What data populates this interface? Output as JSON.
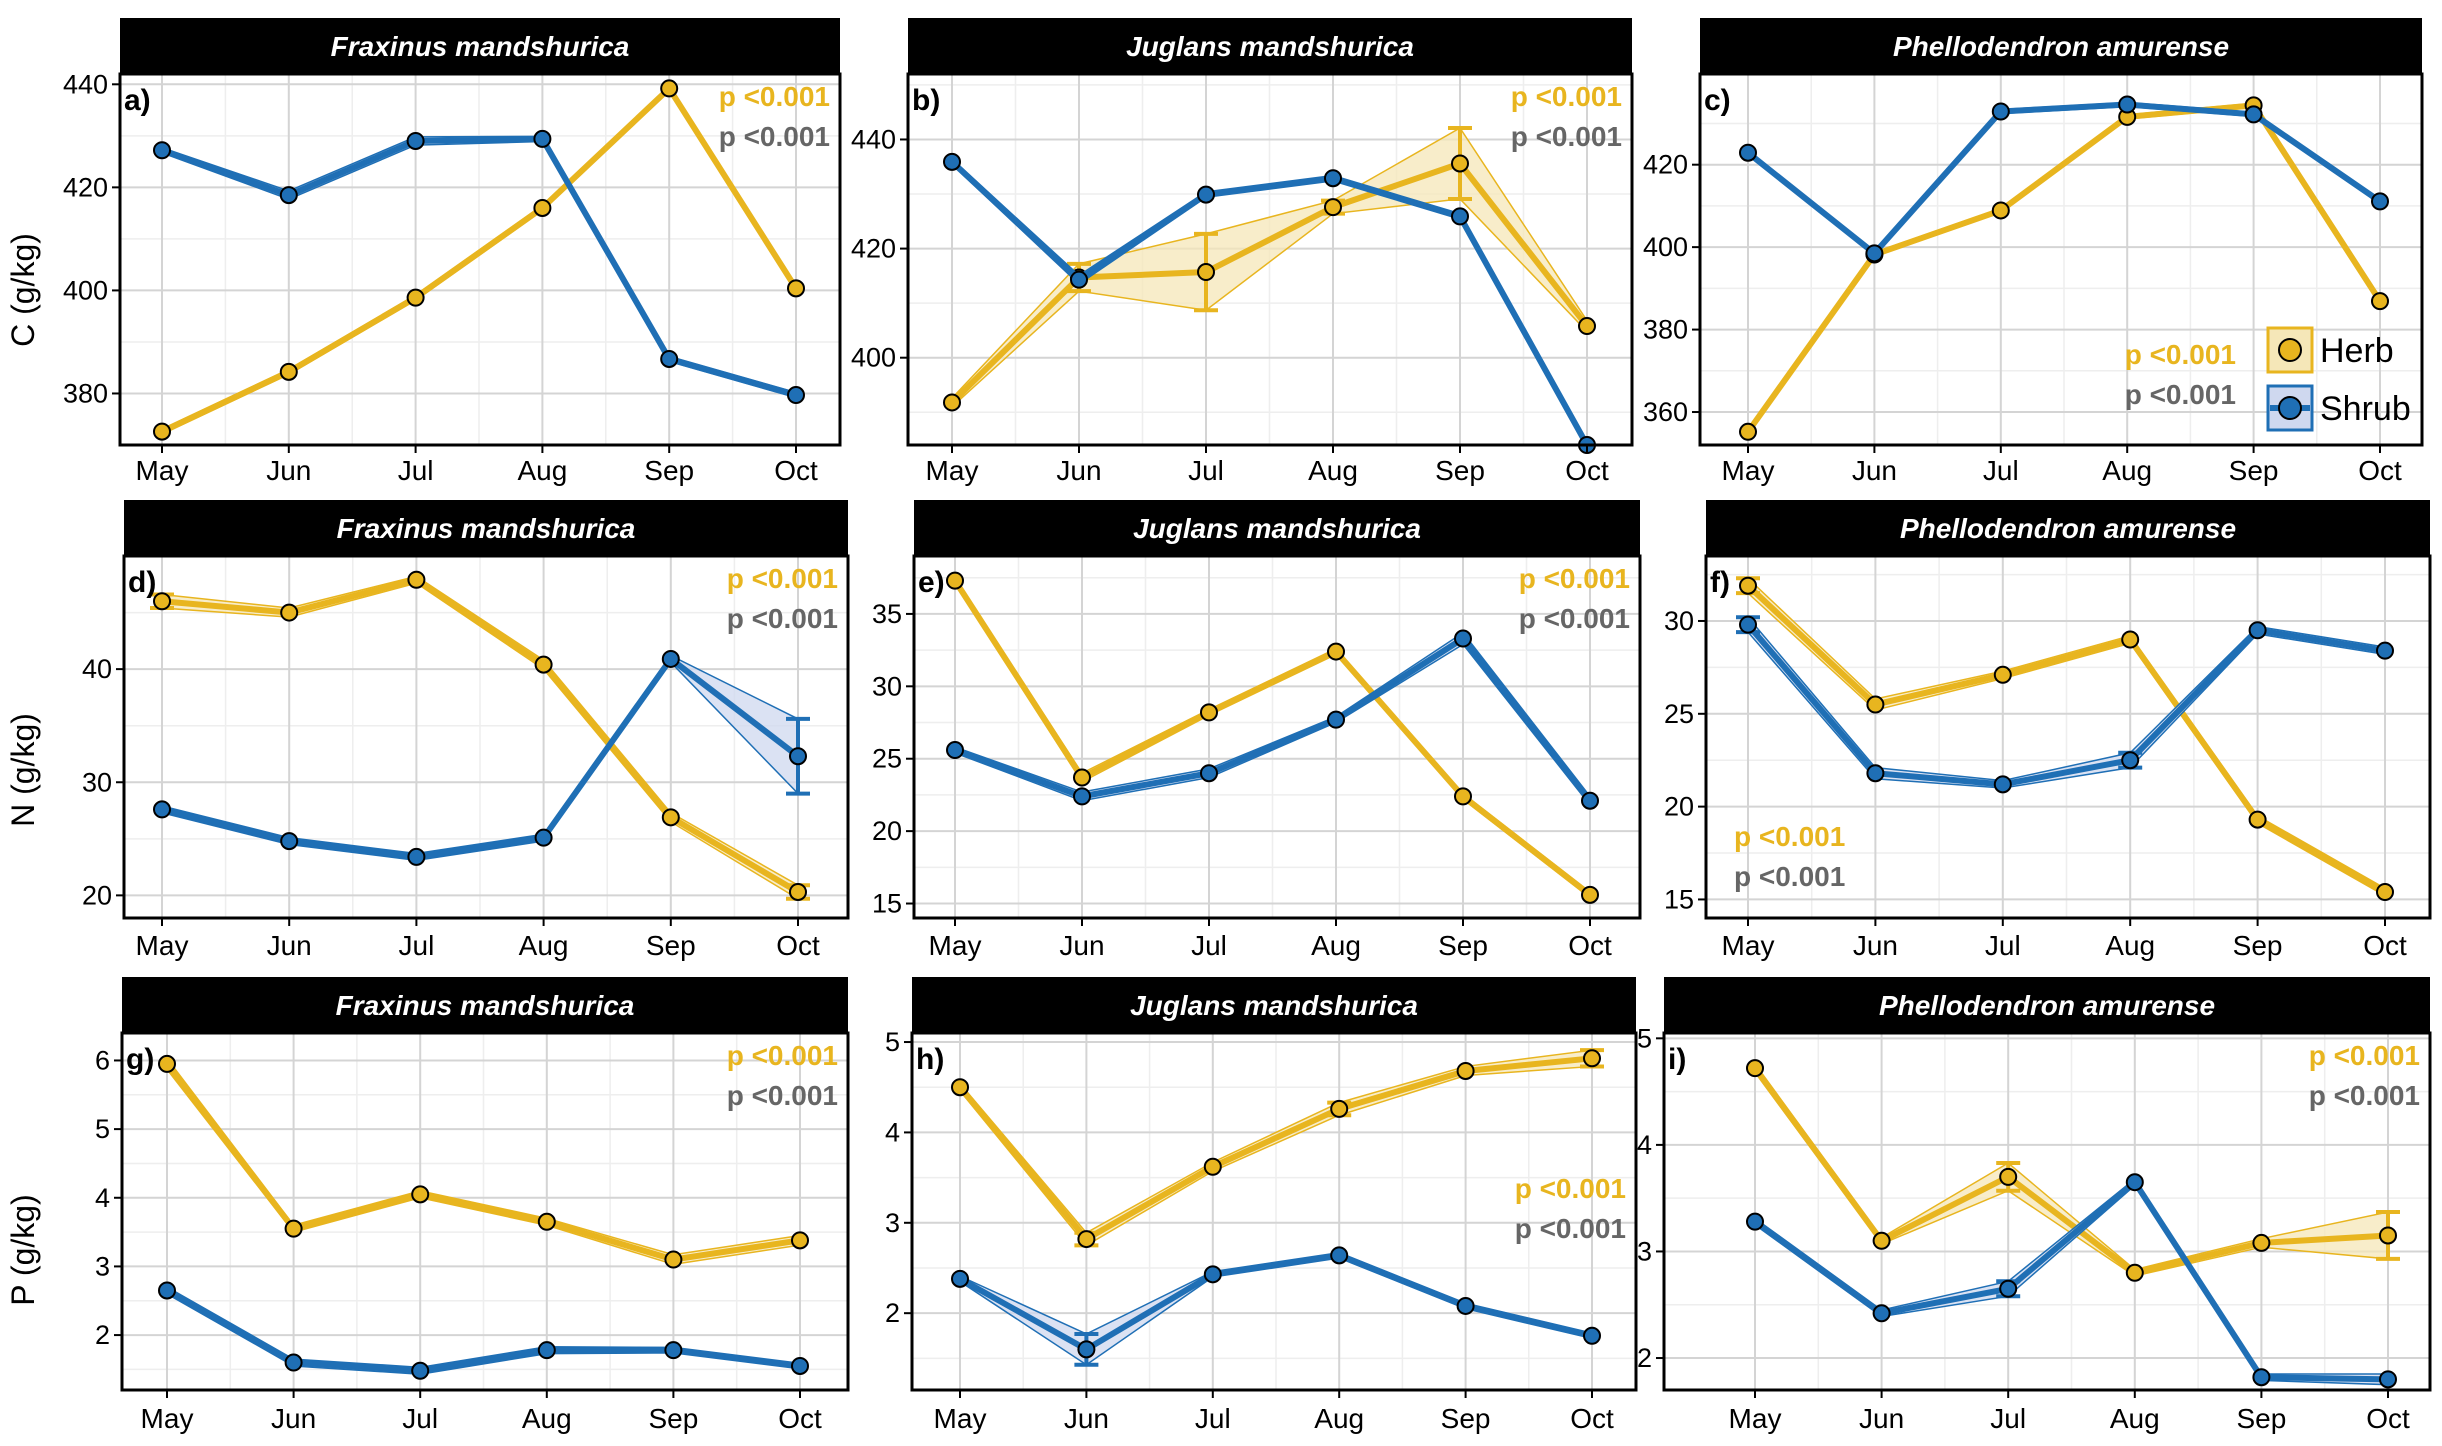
{
  "figure": {
    "months": [
      "May",
      "Jun",
      "Jul",
      "Aug",
      "Sep",
      "Oct"
    ],
    "colors": {
      "herb": "#e8b51f",
      "shrub": "#1f6fb5",
      "p_gray": "#666666",
      "strip": "#000000",
      "grid_major": "#d4d4d4",
      "grid_minor": "#eeeeee"
    },
    "legend": {
      "herb_label": "Herb",
      "shrub_label": "Shrub"
    },
    "row_labels": [
      "C (g/kg)",
      "N (g/kg)",
      "P (g/kg)"
    ]
  },
  "chart_data": [
    {
      "id": "a",
      "type": "line",
      "tag": "a)",
      "title": "Fraxinus mandshurica",
      "ylabel": "C (g/kg)",
      "xlabel": "",
      "categories": [
        "May",
        "Jun",
        "Jul",
        "Aug",
        "Sep",
        "Oct"
      ],
      "ylim": [
        370,
        442
      ],
      "yticks": [
        380,
        400,
        420,
        440
      ],
      "series": [
        {
          "name": "Herb",
          "values": [
            372.6,
            384.2,
            398.6,
            416.0,
            439.2,
            400.4
          ],
          "err": [
            0.5,
            0.5,
            0.5,
            0.5,
            0.5,
            0.5
          ]
        },
        {
          "name": "Shrub",
          "values": [
            427.2,
            418.5,
            429.0,
            429.4,
            386.7,
            379.7
          ],
          "err": [
            0.5,
            0.8,
            0.8,
            0.5,
            0.5,
            0.5
          ]
        }
      ],
      "p_text": {
        "herb": "p <0.001",
        "shrub": "p <0.001",
        "pos": "top-right"
      }
    },
    {
      "id": "b",
      "type": "line",
      "tag": "b)",
      "title": "Juglans mandshurica",
      "ylabel": "",
      "xlabel": "",
      "categories": [
        "May",
        "Jun",
        "Jul",
        "Aug",
        "Sep",
        "Oct"
      ],
      "ylim": [
        384,
        452
      ],
      "yticks": [
        400,
        420,
        440
      ],
      "series": [
        {
          "name": "Herb",
          "values": [
            391.8,
            414.7,
            415.7,
            427.6,
            435.6,
            405.8
          ],
          "err": [
            0.8,
            2.5,
            7,
            1.2,
            6.5,
            1.0
          ]
        },
        {
          "name": "Shrub",
          "values": [
            435.9,
            414.3,
            429.9,
            432.9,
            425.9,
            384.0
          ],
          "err": [
            0.5,
            0.8,
            0.5,
            0.5,
            0.5,
            0.5
          ]
        }
      ],
      "p_text": {
        "herb": "p <0.001",
        "shrub": "p <0.001",
        "pos": "top-right"
      }
    },
    {
      "id": "c",
      "type": "line",
      "tag": "c)",
      "title": "Phellodendron amurense",
      "ylabel": "",
      "xlabel": "",
      "categories": [
        "May",
        "Jun",
        "Jul",
        "Aug",
        "Sep",
        "Oct"
      ],
      "ylim": [
        352,
        442
      ],
      "yticks": [
        360,
        380,
        400,
        420
      ],
      "series": [
        {
          "name": "Herb",
          "values": [
            355.2,
            398.2,
            408.9,
            431.6,
            434.4,
            386.9
          ],
          "err": [
            0.5,
            0.5,
            0.5,
            0.5,
            0.5,
            0.5
          ]
        },
        {
          "name": "Shrub",
          "values": [
            422.9,
            398.5,
            432.9,
            434.6,
            432.2,
            411.1
          ],
          "err": [
            0.5,
            0.5,
            0.5,
            0.5,
            0.5,
            0.5
          ]
        }
      ],
      "p_text": {
        "herb": "p <0.001",
        "shrub": "p <0.001",
        "pos": "bottom-right"
      }
    },
    {
      "id": "d",
      "type": "line",
      "tag": "d)",
      "title": "Fraxinus mandshurica",
      "ylabel": "N (g/kg)",
      "xlabel": "",
      "categories": [
        "May",
        "Jun",
        "Jul",
        "Aug",
        "Sep",
        "Oct"
      ],
      "ylim": [
        18,
        50
      ],
      "yticks": [
        20,
        30,
        40
      ],
      "series": [
        {
          "name": "Herb",
          "values": [
            46.0,
            45.0,
            47.9,
            40.4,
            26.9,
            20.3
          ],
          "err": [
            0.6,
            0.4,
            0.3,
            0.4,
            0.4,
            0.6
          ]
        },
        {
          "name": "Shrub",
          "values": [
            27.6,
            24.8,
            23.4,
            25.1,
            40.9,
            32.3
          ],
          "err": [
            0.3,
            0.3,
            0.3,
            0.3,
            0.3,
            3.3
          ]
        }
      ],
      "p_text": {
        "herb": "p <0.001",
        "shrub": "p <0.001",
        "pos": "top-right"
      }
    },
    {
      "id": "e",
      "type": "line",
      "tag": "e)",
      "title": "Juglans mandshurica",
      "ylabel": "",
      "xlabel": "",
      "categories": [
        "May",
        "Jun",
        "Jul",
        "Aug",
        "Sep",
        "Oct"
      ],
      "ylim": [
        14,
        39
      ],
      "yticks": [
        15,
        20,
        25,
        30,
        35
      ],
      "series": [
        {
          "name": "Herb",
          "values": [
            37.3,
            23.7,
            28.2,
            32.4,
            22.4,
            15.6
          ],
          "err": [
            0.2,
            0.3,
            0.2,
            0.2,
            0.2,
            0.2
          ]
        },
        {
          "name": "Shrub",
          "values": [
            25.6,
            22.4,
            24.0,
            27.7,
            33.3,
            22.1
          ],
          "err": [
            0.2,
            0.3,
            0.3,
            0.2,
            0.4,
            0.3
          ]
        }
      ],
      "p_text": {
        "herb": "p <0.001",
        "shrub": "p <0.001",
        "pos": "top-right"
      }
    },
    {
      "id": "f",
      "type": "line",
      "tag": "f)",
      "title": "Phellodendron amurense",
      "ylabel": "",
      "xlabel": "",
      "categories": [
        "May",
        "Jun",
        "Jul",
        "Aug",
        "Sep",
        "Oct"
      ],
      "ylim": [
        14,
        33.5
      ],
      "yticks": [
        15,
        20,
        25,
        30
      ],
      "series": [
        {
          "name": "Herb",
          "values": [
            31.9,
            25.5,
            27.1,
            29.0,
            19.3,
            15.4
          ],
          "err": [
            0.4,
            0.3,
            0.2,
            0.2,
            0.2,
            0.2
          ]
        },
        {
          "name": "Shrub",
          "values": [
            29.8,
            21.8,
            21.2,
            22.5,
            29.5,
            28.4
          ],
          "err": [
            0.4,
            0.3,
            0.2,
            0.4,
            0.2,
            0.2
          ]
        }
      ],
      "p_text": {
        "herb": "p <0.001",
        "shrub": "p <0.001",
        "pos": "bottom-left"
      }
    },
    {
      "id": "g",
      "type": "line",
      "tag": "g)",
      "title": "Fraxinus mandshurica",
      "ylabel": "P (g/kg)",
      "xlabel": "",
      "categories": [
        "May",
        "Jun",
        "Jul",
        "Aug",
        "Sep",
        "Oct"
      ],
      "ylim": [
        1.2,
        6.4
      ],
      "yticks": [
        2,
        3,
        4,
        5,
        6
      ],
      "series": [
        {
          "name": "Herb",
          "values": [
            5.95,
            3.55,
            4.05,
            3.65,
            3.1,
            3.38
          ],
          "err": [
            0.08,
            0.05,
            0.05,
            0.05,
            0.07,
            0.07
          ]
        },
        {
          "name": "Shrub",
          "values": [
            2.65,
            1.6,
            1.48,
            1.78,
            1.78,
            1.55
          ],
          "err": [
            0.05,
            0.05,
            0.05,
            0.05,
            0.04,
            0.04
          ]
        }
      ],
      "p_text": {
        "herb": "p <0.001",
        "shrub": "p <0.001",
        "pos": "top-right"
      }
    },
    {
      "id": "h",
      "type": "line",
      "tag": "h)",
      "title": "Juglans mandshurica",
      "ylabel": "",
      "xlabel": "",
      "categories": [
        "May",
        "Jun",
        "Jul",
        "Aug",
        "Sep",
        "Oct"
      ],
      "ylim": [
        1.15,
        5.1
      ],
      "yticks": [
        2,
        3,
        4,
        5
      ],
      "series": [
        {
          "name": "Herb",
          "values": [
            4.5,
            2.82,
            3.62,
            4.26,
            4.68,
            4.82
          ],
          "err": [
            0.04,
            0.07,
            0.05,
            0.07,
            0.05,
            0.09
          ]
        },
        {
          "name": "Shrub",
          "values": [
            2.38,
            1.6,
            2.43,
            2.64,
            2.08,
            1.75
          ],
          "err": [
            0.03,
            0.17,
            0.03,
            0.03,
            0.03,
            0.03
          ]
        }
      ],
      "p_text": {
        "herb": "p <0.001",
        "shrub": "p <0.001",
        "pos": "middle-right"
      }
    },
    {
      "id": "i",
      "type": "line",
      "tag": "i)",
      "title": "Phellodendron amurense",
      "ylabel": "",
      "xlabel": "",
      "categories": [
        "May",
        "Jun",
        "Jul",
        "Aug",
        "Sep",
        "Oct"
      ],
      "ylim": [
        1.7,
        5.05
      ],
      "yticks": [
        2,
        3,
        4,
        5
      ],
      "series": [
        {
          "name": "Herb",
          "values": [
            4.72,
            3.1,
            3.7,
            2.8,
            3.08,
            3.15
          ],
          "err": [
            0.04,
            0.03,
            0.13,
            0.03,
            0.04,
            0.22
          ]
        },
        {
          "name": "Shrub",
          "values": [
            3.28,
            2.42,
            2.65,
            3.65,
            1.82,
            1.8
          ],
          "err": [
            0.03,
            0.03,
            0.07,
            0.03,
            0.03,
            0.05
          ]
        }
      ],
      "p_text": {
        "herb": "p <0.001",
        "shrub": "p <0.001",
        "pos": "top-right"
      }
    }
  ]
}
